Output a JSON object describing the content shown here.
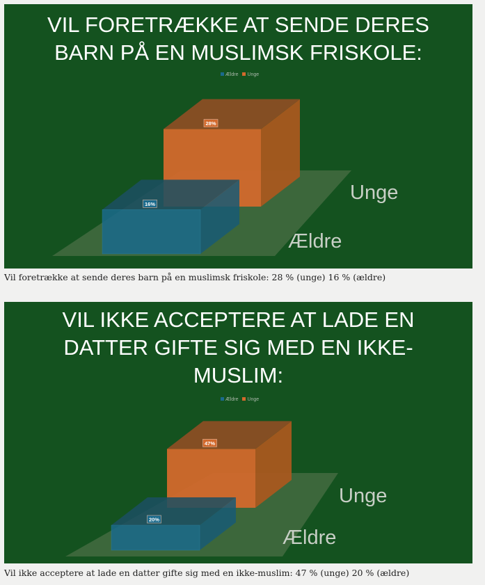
{
  "colors": {
    "background": "#14521f",
    "aeldre": "#1a6a8c",
    "unge": "#d2692c",
    "floor": "#4a6f46"
  },
  "chart_data": [
    {
      "type": "bar",
      "title": "VIL FORETRÆKKE AT SENDE DERES BARN PÅ EN MUSLIMSK FRISKOLE:",
      "title_lines": [
        "VIL FORETRÆKKE AT SENDE DERES",
        "BARN PÅ EN MUSLIMSK FRISKOLE:"
      ],
      "legend": [
        "Ældre",
        "Unge"
      ],
      "legend_placement": "top",
      "style": "3d",
      "categories": [
        "Ældre",
        "Unge"
      ],
      "values": [
        16,
        28
      ],
      "labels": [
        "16%",
        "28%"
      ],
      "caption": "Vil foretrække at sende deres barn på en muslimsk friskole: 28 % (unge) 16 % (ældre)"
    },
    {
      "type": "bar",
      "title": "VIL IKKE ACCEPTERE AT LADE EN DATTER GIFTE SIG MED EN IKKE-MUSLIM:",
      "title_lines": [
        "VIL IKKE ACCEPTERE AT LADE EN",
        "DATTER GIFTE SIG MED EN IKKE-",
        "MUSLIM:"
      ],
      "legend": [
        "Ældre",
        "Unge"
      ],
      "legend_placement": "top",
      "style": "3d",
      "categories": [
        "Ældre",
        "Unge"
      ],
      "values": [
        20,
        47
      ],
      "labels": [
        "20%",
        "47%"
      ],
      "caption": "Vil ikke acceptere at lade en datter gifte sig med en ikke-muslim: 47 % (unge) 20 % (ældre)"
    }
  ]
}
